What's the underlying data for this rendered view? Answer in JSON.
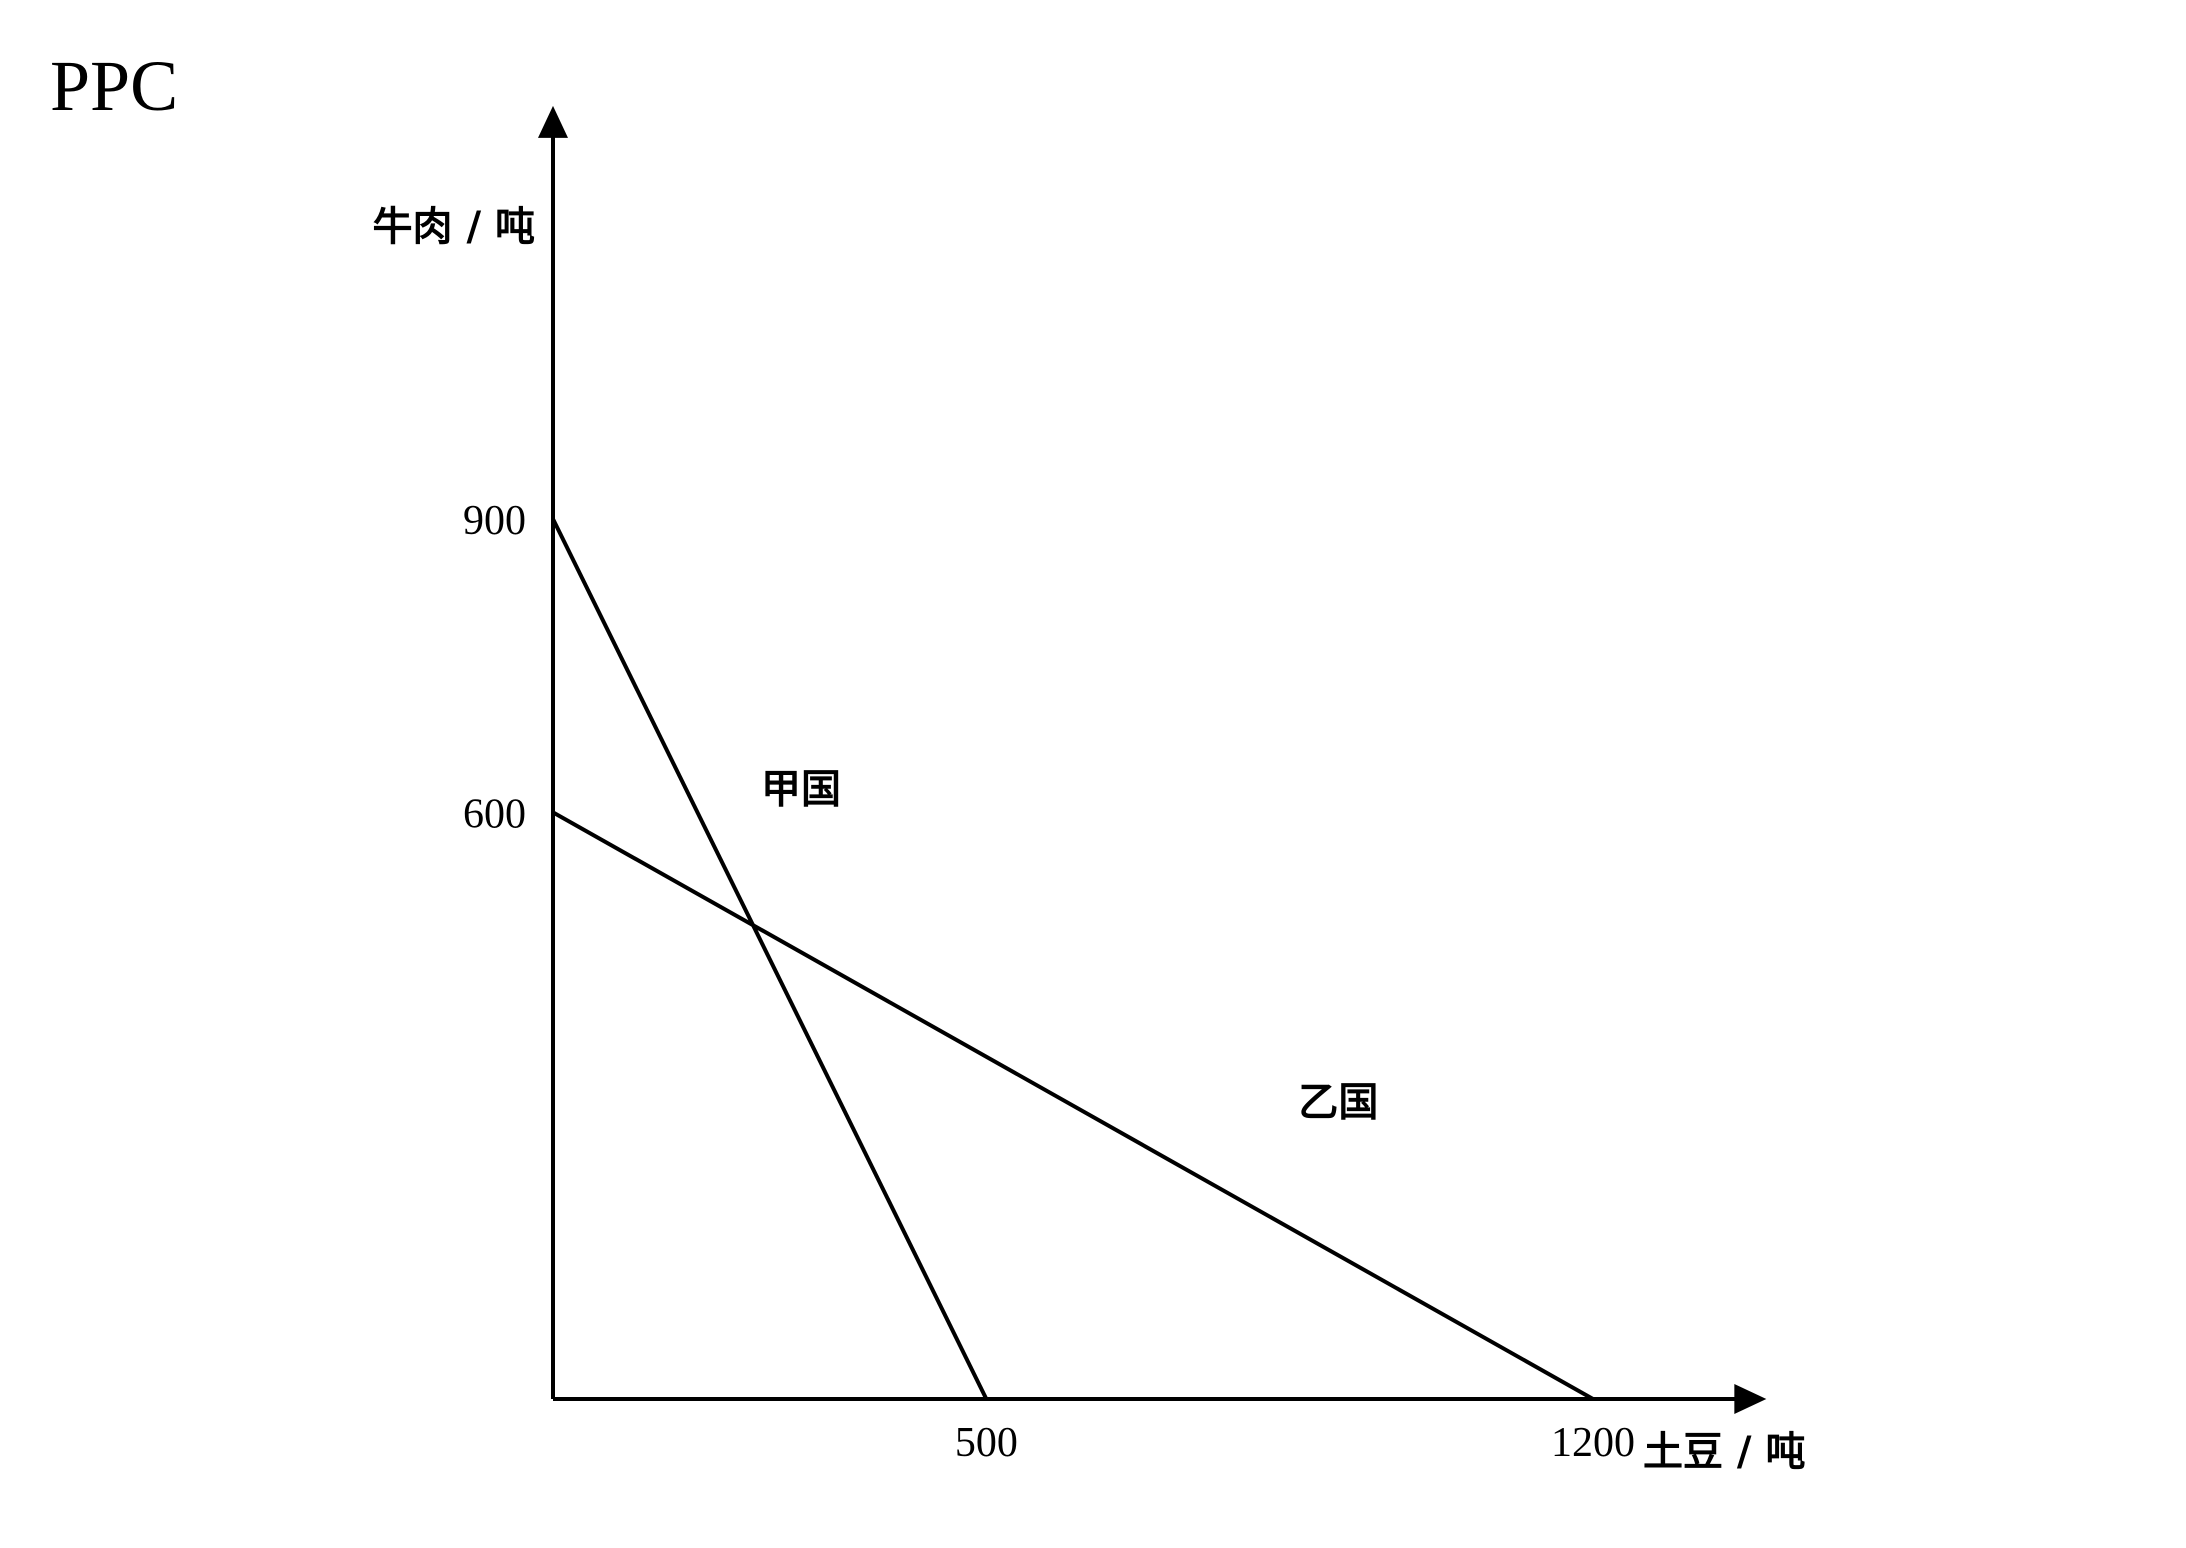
{
  "chart_data": {
    "type": "line",
    "title": "PPC",
    "xlabel": "土豆 / 吨",
    "ylabel": "牛肉 / 吨",
    "xlim": [
      0,
      1400
    ],
    "ylim": [
      0,
      1300
    ],
    "x_ticks": [
      500,
      1200
    ],
    "y_ticks": [
      600,
      900
    ],
    "x_tick_labels": [
      "500",
      "1200"
    ],
    "y_tick_labels": [
      "600",
      "900"
    ],
    "grid": false,
    "series": [
      {
        "name": "甲国",
        "points": [
          {
            "x": 0,
            "y": 900
          },
          {
            "x": 500,
            "y": 0
          }
        ],
        "label_at": {
          "x": 240,
          "y": 610
        }
      },
      {
        "name": "乙国",
        "points": [
          {
            "x": 0,
            "y": 600
          },
          {
            "x": 1200,
            "y": 0
          }
        ],
        "label_at": {
          "x": 860,
          "y": 290
        }
      }
    ],
    "colors": {
      "line": "#000000",
      "background": "#ffffff"
    }
  }
}
